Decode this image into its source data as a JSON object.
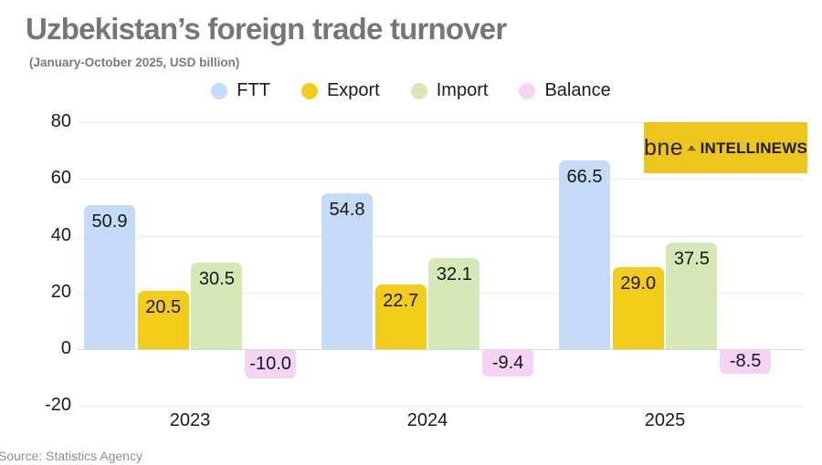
{
  "header": {
    "title": "Uzbekistan’s foreign trade turnover",
    "subtitle": "(January-October 2025, USD billion)"
  },
  "logo": {
    "bne": "bne",
    "intellinews": "INTELLINEWS",
    "background_color": "#eec51c",
    "text_color": "#26220a",
    "icon": "mountain-icon"
  },
  "footer": {
    "source": "Source: Statistics Agency"
  },
  "chart_data": {
    "type": "bar",
    "title": "Uzbekistan’s foreign trade turnover",
    "subtitle": "(January-October 2025, USD billion)",
    "categories": [
      "2023",
      "2024",
      "2025"
    ],
    "series": [
      {
        "name": "FTT",
        "color": "#c4daf7",
        "values": [
          50.9,
          54.8,
          66.5
        ],
        "labels": [
          "50.9",
          "54.8",
          "66.5"
        ]
      },
      {
        "name": "Export",
        "color": "#f2cc19",
        "values": [
          20.5,
          22.7,
          29.0
        ],
        "labels": [
          "20.5",
          "22.7",
          "29.0"
        ]
      },
      {
        "name": "Import",
        "color": "#d6e8b8",
        "values": [
          30.5,
          32.1,
          37.5
        ],
        "labels": [
          "30.5",
          "32.1",
          "37.5"
        ]
      },
      {
        "name": "Balance",
        "color": "#f5d3f4",
        "values": [
          -10.0,
          -9.4,
          -8.5
        ],
        "labels": [
          "-10.0",
          "-9.4",
          "-8.5"
        ]
      }
    ],
    "xlabel": "",
    "ylabel": "",
    "ylim": [
      -20,
      80
    ],
    "yticks": [
      80,
      60,
      40,
      20,
      0,
      -20
    ],
    "grid": true,
    "legend_position": "top",
    "source": "Source: Statistics Agency"
  }
}
